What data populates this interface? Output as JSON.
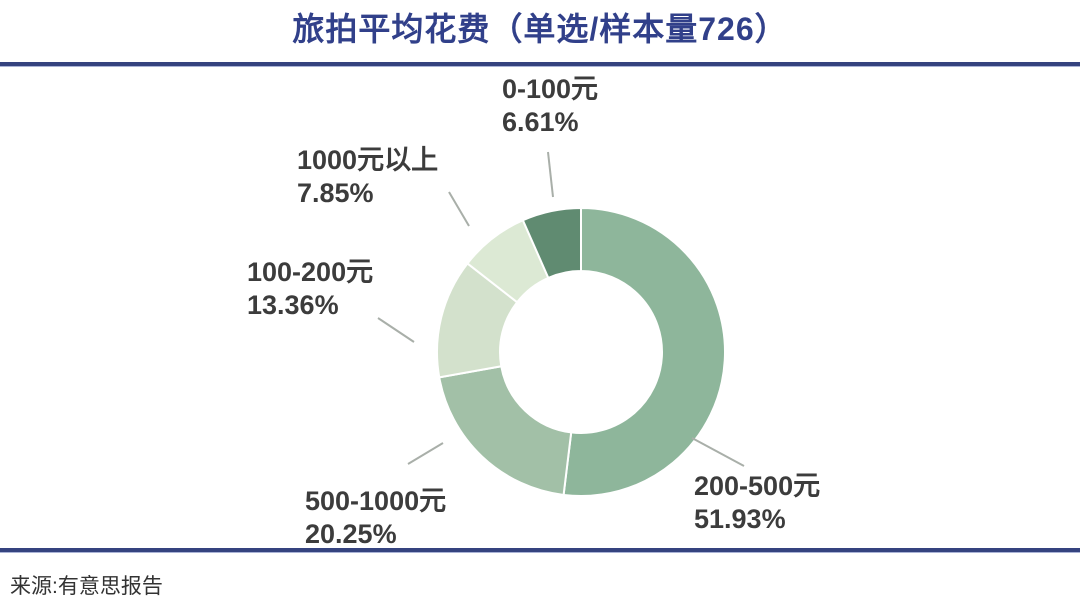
{
  "title": "旅拍平均花费（单选/样本量726）",
  "source": "来源:有意思报告",
  "colors": {
    "accent_navy": "#35437f",
    "title_text": "#31408a",
    "label_text": "#3c3c3c",
    "leader_line": "#a9afa9",
    "slice_separator": "#ffffff"
  },
  "chart_data": {
    "type": "pie",
    "subtype": "donut",
    "title": "旅拍平均花费（单选/样本量726）",
    "selection_note": "单选",
    "sample_size": 726,
    "direction": "clockwise",
    "start_angle_deg": 0,
    "legend_position": "outside-labels-with-leader-lines",
    "segments": [
      {
        "label": "200-500元",
        "value": 51.93,
        "percent_text": "51.93%",
        "color": "#8eb69b"
      },
      {
        "label": "500-1000元",
        "value": 20.25,
        "percent_text": "20.25%",
        "color": "#a2c0a7"
      },
      {
        "label": "100-200元",
        "value": 13.36,
        "percent_text": "13.36%",
        "color": "#d3e1cc"
      },
      {
        "label": "1000元以上",
        "value": 7.85,
        "percent_text": "7.85%",
        "color": "#dce9d4"
      },
      {
        "label": "0-100元",
        "value": 6.61,
        "percent_text": "6.61%",
        "color": "#608b71"
      }
    ]
  }
}
